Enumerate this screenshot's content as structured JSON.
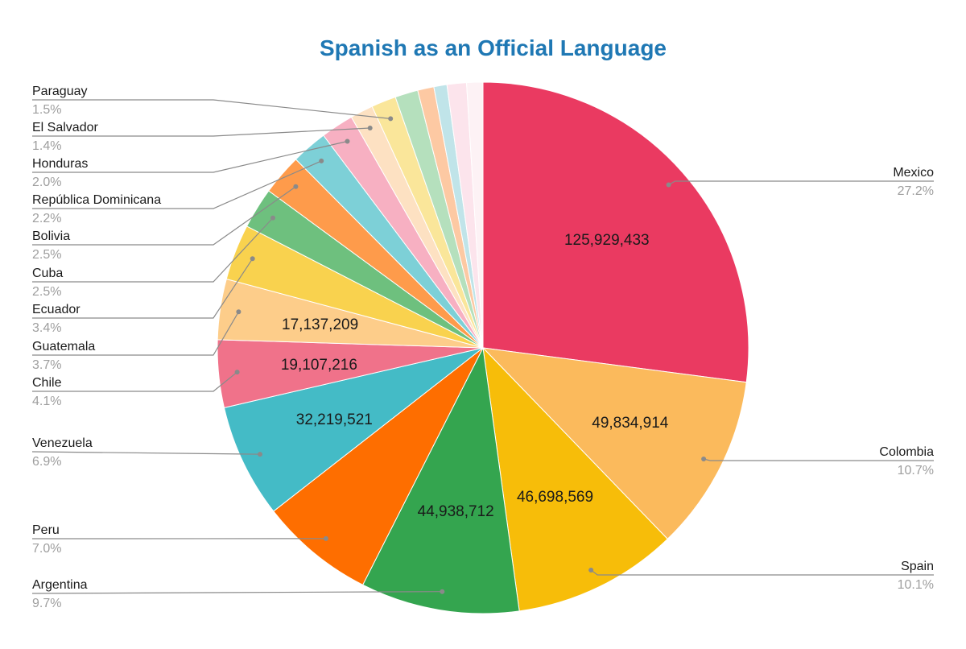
{
  "chart_data": {
    "type": "pie",
    "title": "Spanish as an Official Language",
    "start_angle_deg": 0,
    "direction": "clockwise",
    "slices": [
      {
        "label": "Mexico",
        "value": 125929433,
        "percent_label": "27.2%",
        "value_label": "125,929,433",
        "color": "#ea3a61",
        "legend_side": "right"
      },
      {
        "label": "Colombia",
        "value": 49834914,
        "percent_label": "10.7%",
        "value_label": "49,834,914",
        "color": "#fbba5c",
        "legend_side": "right"
      },
      {
        "label": "Spain",
        "value": 46698569,
        "percent_label": "10.1%",
        "value_label": "46,698,569",
        "color": "#f7bd09",
        "legend_side": "right"
      },
      {
        "label": "Argentina",
        "value": 44938712,
        "percent_label": "9.7%",
        "value_label": "44,938,712",
        "color": "#34a54f",
        "legend_side": "left"
      },
      {
        "label": "Peru",
        "value": 32500000,
        "percent_label": "7.0%",
        "value_label": "",
        "color": "#fe6e00",
        "legend_side": "left"
      },
      {
        "label": "Venezuela",
        "value": 32219521,
        "percent_label": "6.9%",
        "value_label": "32,219,521",
        "color": "#44bbc6",
        "legend_side": "left"
      },
      {
        "label": "Chile",
        "value": 19107216,
        "percent_label": "4.1%",
        "value_label": "19,107,216",
        "color": "#f0728a",
        "legend_side": "left"
      },
      {
        "label": "Guatemala",
        "value": 17137209,
        "percent_label": "3.7%",
        "value_label": "17,137,209",
        "color": "#fdcd8a",
        "legend_side": "left"
      },
      {
        "label": "Ecuador",
        "value": 15800000,
        "percent_label": "3.4%",
        "value_label": "",
        "color": "#f9d24e",
        "legend_side": "left"
      },
      {
        "label": "Cuba",
        "value": 11600000,
        "percent_label": "2.5%",
        "value_label": "",
        "color": "#6ec07e",
        "legend_side": "left"
      },
      {
        "label": "Bolivia",
        "value": 11600000,
        "percent_label": "2.5%",
        "value_label": "",
        "color": "#fe9b4b",
        "legend_side": "left"
      },
      {
        "label": "República Dominicana",
        "value": 10200000,
        "percent_label": "2.2%",
        "value_label": "",
        "color": "#7dd0d7",
        "legend_side": "left"
      },
      {
        "label": "Honduras",
        "value": 9300000,
        "percent_label": "2.0%",
        "value_label": "",
        "color": "#f7b0c2",
        "legend_side": "left"
      },
      {
        "label": "El Salvador",
        "value": 6500000,
        "percent_label": "1.4%",
        "value_label": "",
        "color": "#fde1c2",
        "legend_side": "left"
      },
      {
        "label": "Paraguay",
        "value": 7000000,
        "percent_label": "1.5%",
        "value_label": "",
        "color": "#fae69a",
        "legend_side": "left"
      },
      {
        "label": "",
        "value": 6500000,
        "percent_label": "",
        "value_label": "",
        "color": "#b5e0bd",
        "legend_side": "none"
      },
      {
        "label": "",
        "value": 4600000,
        "percent_label": "",
        "value_label": "",
        "color": "#fdc9a3",
        "legend_side": "none"
      },
      {
        "label": "",
        "value": 3700000,
        "percent_label": "",
        "value_label": "",
        "color": "#c0e4e9",
        "legend_side": "none"
      },
      {
        "label": "",
        "value": 5500000,
        "percent_label": "",
        "value_label": "",
        "color": "#fce4ec",
        "legend_side": "none"
      },
      {
        "label": "",
        "value": 4600000,
        "percent_label": "",
        "value_label": "",
        "color": "#fdf2f5",
        "legend_side": "none"
      }
    ]
  }
}
